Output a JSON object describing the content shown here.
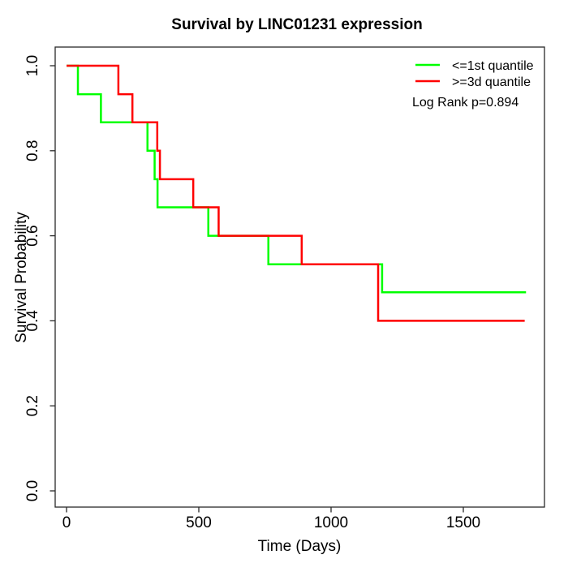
{
  "figure": {
    "background": "#ffffff",
    "frame_color": "#2a2a2a"
  },
  "chart_data": {
    "type": "line",
    "subtype": "kaplan_meier_step",
    "title": "Survival by LINC01231 expression",
    "xlabel": "Time (Days)",
    "ylabel": "Survival Probability",
    "xlim": [
      0,
      1740
    ],
    "ylim": [
      0.0,
      1.0
    ],
    "x_ticks": [
      0,
      500,
      1000,
      1500
    ],
    "y_ticks": [
      0.0,
      0.2,
      0.4,
      0.6,
      0.8,
      1.0
    ],
    "grid": "off",
    "legend_position": "top-right",
    "annotation": "Log Rank p=0.894",
    "series": [
      {
        "name": "<=1st quantile",
        "color": "#00ff00",
        "steps": [
          [
            0,
            1.0
          ],
          [
            43,
            0.933
          ],
          [
            130,
            0.867
          ],
          [
            306,
            0.8
          ],
          [
            333,
            0.733
          ],
          [
            344,
            0.667
          ],
          [
            536,
            0.6
          ],
          [
            763,
            0.533
          ],
          [
            1193,
            0.467
          ]
        ],
        "end_time": 1737
      },
      {
        "name": ">=3d quantile",
        "color": "#ff0000",
        "steps": [
          [
            0,
            1.0
          ],
          [
            196,
            0.933
          ],
          [
            249,
            0.867
          ],
          [
            343,
            0.8
          ],
          [
            353,
            0.733
          ],
          [
            479,
            0.667
          ],
          [
            575,
            0.6
          ],
          [
            889,
            0.533
          ],
          [
            1178,
            0.4
          ]
        ],
        "end_time": 1732
      }
    ]
  }
}
